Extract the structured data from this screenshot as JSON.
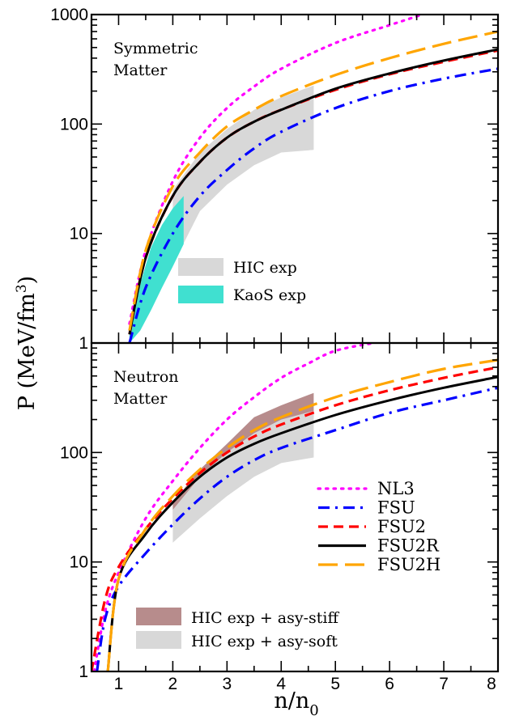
{
  "chart_data": [
    {
      "type": "line",
      "panel": "top",
      "annotation": [
        "Symmetric",
        "Matter"
      ],
      "xlim": [
        0.5,
        8
      ],
      "ylim": [
        1,
        1000
      ],
      "yscale": "log",
      "y_ticks": [
        "1",
        "10",
        "100",
        "1000"
      ],
      "x_ticks": [],
      "legend_placement": "lower-center",
      "bands": [
        {
          "name": "HIC exp",
          "color": "#d8d8d8",
          "x": [
            2.0,
            2.5,
            3.0,
            3.5,
            4.0,
            4.6
          ],
          "low": [
            5.2,
            16,
            28,
            42,
            55,
            58
          ],
          "high": [
            25,
            55,
            90,
            135,
            175,
            225
          ]
        },
        {
          "name": "KaoS exp",
          "color": "#40e0d0",
          "x": [
            1.2,
            1.4,
            1.6,
            1.8,
            2.0,
            2.2
          ],
          "low": [
            1.0,
            1.3,
            2.0,
            3.2,
            5.0,
            8.0
          ],
          "high": [
            1.3,
            3.5,
            7.5,
            12,
            17,
            22
          ]
        }
      ],
      "series": [
        {
          "key": "NL3",
          "color": "#ff00ff",
          "dash": "dot",
          "x": [
            1.2,
            1.5,
            2,
            2.5,
            3,
            3.5,
            4,
            5,
            6,
            6.6
          ],
          "y": [
            1.5,
            7,
            30,
            75,
            140,
            220,
            320,
            550,
            800,
            1000
          ]
        },
        {
          "key": "FSU",
          "color": "#0000ff",
          "dash": "dashdot",
          "x": [
            1.2,
            1.5,
            2,
            2.5,
            3,
            3.5,
            4,
            5,
            6,
            7,
            8
          ],
          "y": [
            1.0,
            3.2,
            10,
            22,
            38,
            60,
            85,
            140,
            200,
            260,
            320
          ]
        },
        {
          "key": "FSU2",
          "color": "#ff0000",
          "dash": "dash",
          "x": [
            1.2,
            1.5,
            2,
            2.5,
            3,
            3.5,
            4,
            5,
            6,
            7,
            8
          ],
          "y": [
            1.2,
            6,
            22,
            45,
            75,
            105,
            135,
            205,
            285,
            370,
            470
          ]
        },
        {
          "key": "FSU2R",
          "color": "#000000",
          "dash": "solid",
          "x": [
            1.2,
            1.5,
            2,
            2.5,
            3,
            3.5,
            4,
            5,
            6,
            7,
            8
          ],
          "y": [
            1.2,
            6,
            22,
            45,
            75,
            105,
            135,
            210,
            290,
            380,
            480
          ]
        },
        {
          "key": "FSU2H",
          "color": "#ffa500",
          "dash": "longdash",
          "x": [
            1.2,
            1.5,
            2,
            2.5,
            3,
            3.5,
            4,
            5,
            6,
            7,
            8
          ],
          "y": [
            1.3,
            7,
            27,
            55,
            95,
            135,
            180,
            280,
            400,
            540,
            700
          ]
        }
      ]
    },
    {
      "type": "line",
      "panel": "bottom",
      "annotation": [
        "Neutron",
        "Matter"
      ],
      "xlim": [
        0.5,
        8
      ],
      "ylim": [
        1,
        1000
      ],
      "yscale": "log",
      "y_ticks": [
        "1",
        "10",
        "100"
      ],
      "x_ticks": [
        "1",
        "2",
        "3",
        "4",
        "5",
        "6",
        "7",
        "8"
      ],
      "xlabel_main": "n/n",
      "xlabel_sub": "0",
      "legend_placement": "right",
      "bands_legend_placement": "lower-center",
      "bands": [
        {
          "name": "HIC exp + asy-stiff",
          "color": "#b78c8c",
          "x": [
            2.0,
            2.5,
            3.0,
            3.5,
            4.0,
            4.6
          ],
          "low": [
            22,
            42,
            70,
            110,
            160,
            210
          ],
          "high": [
            35,
            70,
            120,
            210,
            270,
            350
          ]
        },
        {
          "name": "HIC exp + asy-soft",
          "color": "#d8d8d8",
          "x": [
            2.0,
            2.5,
            3.0,
            3.5,
            4.0,
            4.6
          ],
          "low": [
            15,
            25,
            40,
            60,
            80,
            90
          ],
          "high": [
            30,
            60,
            100,
            150,
            200,
            240
          ]
        }
      ],
      "series": [
        {
          "key": "NL3",
          "color": "#ff00ff",
          "dash": "dot",
          "x": [
            0.55,
            0.75,
            1,
            1.5,
            2,
            2.5,
            3,
            3.5,
            4,
            4.5,
            5,
            5.7
          ],
          "y": [
            1.0,
            3.5,
            8,
            25,
            55,
            110,
            200,
            320,
            480,
            650,
            850,
            1000
          ]
        },
        {
          "key": "FSU",
          "color": "#0000ff",
          "dash": "dashdot",
          "x": [
            0.6,
            0.75,
            1,
            1.5,
            2,
            2.5,
            3,
            3.5,
            4,
            5,
            6,
            7,
            8
          ],
          "y": [
            1.0,
            3.0,
            6,
            12,
            22,
            38,
            60,
            85,
            110,
            160,
            230,
            300,
            390
          ]
        },
        {
          "key": "FSU2",
          "color": "#ff0000",
          "dash": "dash",
          "x": [
            0.5,
            0.75,
            1,
            1.5,
            2,
            2.5,
            3,
            3.5,
            4,
            5,
            6,
            7,
            8
          ],
          "y": [
            1.0,
            4.5,
            9,
            20,
            38,
            65,
            100,
            140,
            180,
            270,
            370,
            480,
            600
          ]
        },
        {
          "key": "FSU2R",
          "color": "#000000",
          "dash": "solid",
          "x": [
            0.8,
            1,
            1.5,
            2,
            2.5,
            3,
            3.5,
            4,
            5,
            6,
            7,
            8
          ],
          "y": [
            1.0,
            7,
            18,
            35,
            60,
            90,
            120,
            150,
            220,
            300,
            390,
            490
          ]
        },
        {
          "key": "FSU2H",
          "color": "#ffa500",
          "dash": "longdash",
          "x": [
            0.8,
            1,
            1.5,
            2,
            2.5,
            3,
            3.5,
            4,
            5,
            6,
            7,
            8
          ],
          "y": [
            1.0,
            7,
            20,
            40,
            70,
            110,
            160,
            210,
            320,
            440,
            580,
            700
          ]
        }
      ]
    }
  ],
  "y_axis_title_main": "P (MeV/fm",
  "y_axis_title_sup": "3",
  "y_axis_title_close": ")",
  "legend": [
    {
      "key": "NL3",
      "label": "NL3"
    },
    {
      "key": "FSU",
      "label": "FSU"
    },
    {
      "key": "FSU2",
      "label": "FSU2"
    },
    {
      "key": "FSU2R",
      "label": "FSU2R"
    },
    {
      "key": "FSU2H",
      "label": "FSU2H"
    }
  ]
}
